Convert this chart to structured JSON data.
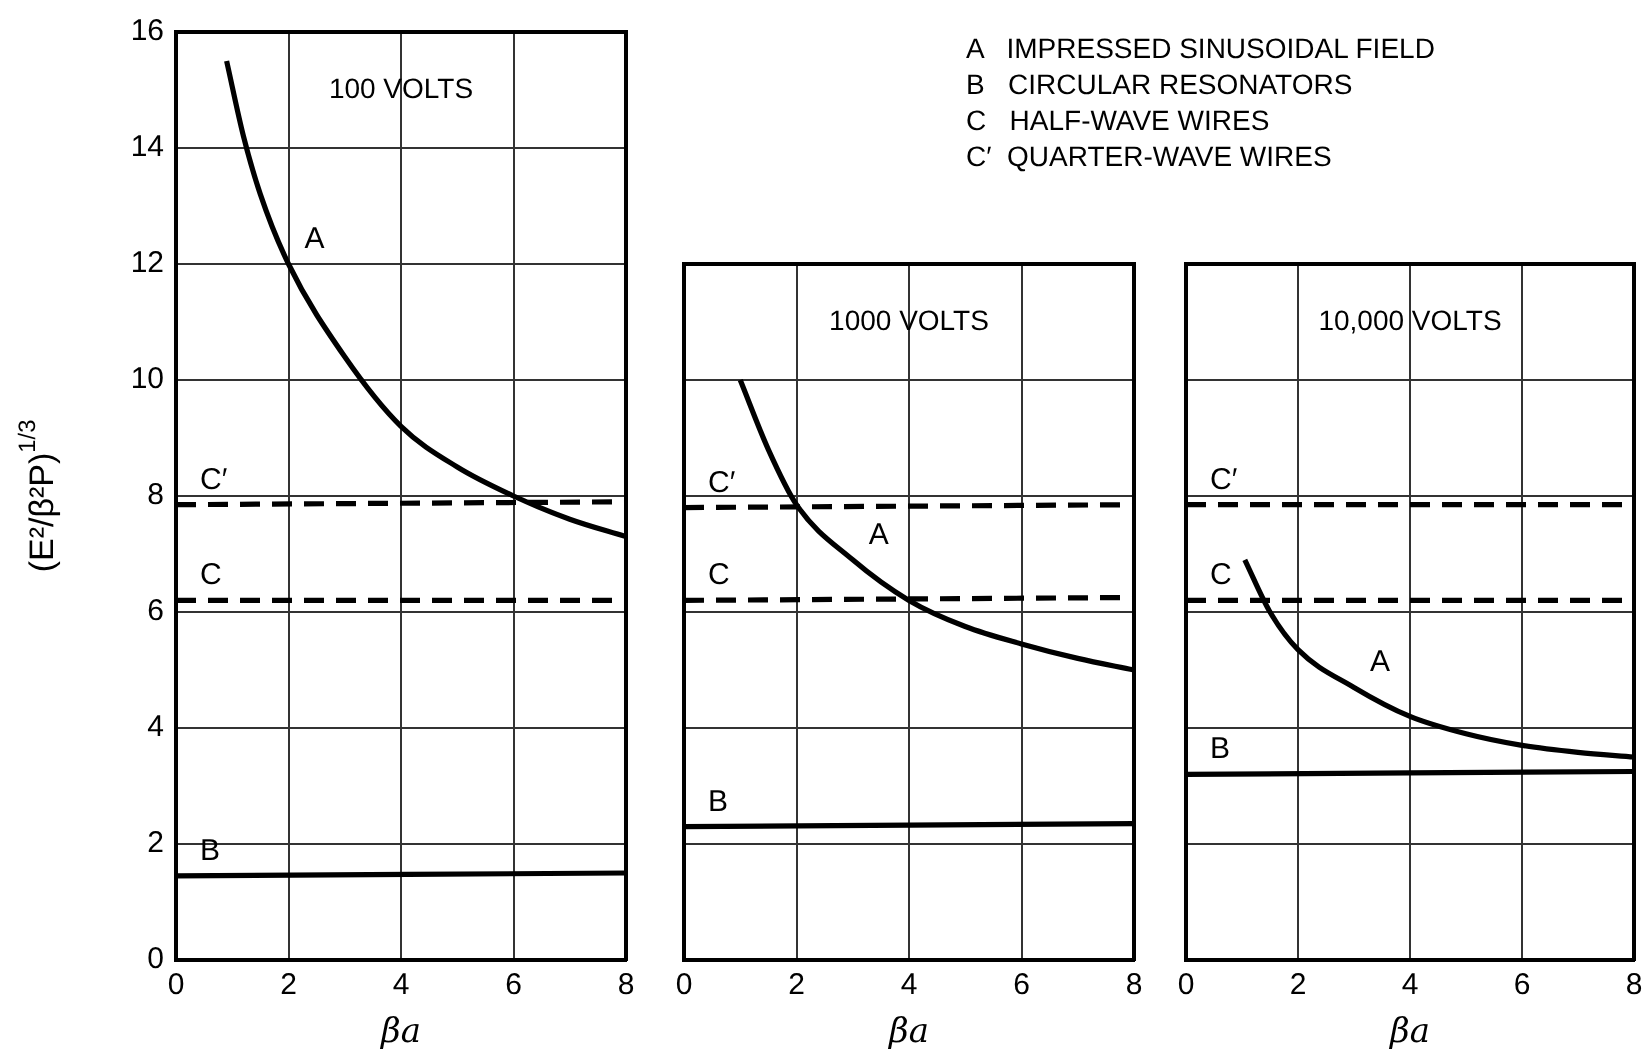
{
  "chart_data": [
    {
      "type": "line",
      "title": "100 VOLTS",
      "xlabel": "βa",
      "ylabel": "(E²/β²P)$^{1/3}$",
      "xlim": [
        0,
        8
      ],
      "xticks": [
        0,
        2,
        4,
        6,
        8
      ],
      "ylim": [
        0,
        16
      ],
      "yticks": [
        0,
        2,
        4,
        6,
        8,
        10,
        12,
        14,
        16
      ],
      "grid": true,
      "series": [
        {
          "name": "A",
          "color": "#000000",
          "x": [
            0.9,
            1.2,
            1.5,
            2,
            3,
            4,
            5,
            6,
            7,
            8
          ],
          "values": [
            15.5,
            14.2,
            13.2,
            12.0,
            10.4,
            9.2,
            8.5,
            8.0,
            7.6,
            7.3
          ]
        },
        {
          "name": "B",
          "color": "#000000",
          "x": [
            0,
            8
          ],
          "values": [
            1.45,
            1.5
          ]
        },
        {
          "name": "C",
          "color": "#000000",
          "x": [
            0,
            8
          ],
          "values": [
            6.2,
            6.2
          ],
          "line_style": "dashed"
        },
        {
          "name": "C′",
          "color": "#000000",
          "x": [
            0,
            8
          ],
          "values": [
            7.85,
            7.9
          ],
          "line_style": "dashed"
        }
      ]
    },
    {
      "type": "line",
      "title": "1000 VOLTS",
      "xlabel": "βa",
      "xlim": [
        0,
        8
      ],
      "xticks": [
        0,
        2,
        4,
        6,
        8
      ],
      "ylim": [
        0,
        12
      ],
      "yticks": [
        0,
        2,
        4,
        6,
        8,
        10,
        12
      ],
      "grid": true,
      "tick_labels": "x",
      "series": [
        {
          "name": "A",
          "color": "#000000",
          "x": [
            1,
            1.5,
            2,
            3,
            4,
            5,
            6,
            7,
            8
          ],
          "values": [
            10.0,
            8.8,
            7.85,
            6.9,
            6.2,
            5.75,
            5.45,
            5.2,
            5.0
          ]
        },
        {
          "name": "B",
          "color": "#000000",
          "x": [
            0,
            8
          ],
          "values": [
            2.3,
            2.35
          ]
        },
        {
          "name": "C",
          "color": "#000000",
          "x": [
            0,
            8
          ],
          "values": [
            6.2,
            6.25
          ],
          "line_style": "dashed"
        },
        {
          "name": "C′",
          "color": "#000000",
          "x": [
            0,
            8
          ],
          "values": [
            7.8,
            7.85
          ],
          "line_style": "dashed"
        }
      ]
    },
    {
      "type": "line",
      "title": "10,000 VOLTS",
      "xlabel": "βa",
      "xlim": [
        0,
        8
      ],
      "xticks": [
        0,
        2,
        4,
        6,
        8
      ],
      "ylim": [
        0,
        12
      ],
      "yticks": [
        0,
        2,
        4,
        6,
        8,
        10,
        12
      ],
      "grid": true,
      "tick_labels": "x",
      "series": [
        {
          "name": "A",
          "color": "#000000",
          "x": [
            1.05,
            1.5,
            2,
            3,
            4,
            5,
            6,
            7,
            8
          ],
          "values": [
            6.9,
            6.0,
            5.35,
            4.7,
            4.2,
            3.9,
            3.7,
            3.58,
            3.5
          ]
        },
        {
          "name": "B",
          "color": "#000000",
          "x": [
            0,
            8
          ],
          "values": [
            3.2,
            3.25
          ]
        },
        {
          "name": "C",
          "color": "#000000",
          "x": [
            0,
            8
          ],
          "values": [
            6.2,
            6.2
          ],
          "line_style": "dashed"
        },
        {
          "name": "C′",
          "color": "#000000",
          "x": [
            0,
            8
          ],
          "values": [
            7.85,
            7.85
          ],
          "line_style": "dashed"
        }
      ],
      "annotations": [
        "A   IMPRESSED SINUSOIDAL FIELD",
        "B   CIRCULAR RESONATORS",
        "C   HALF-WAVE WIRES",
        "C′  QUARTER-WAVE WIRES"
      ]
    }
  ]
}
